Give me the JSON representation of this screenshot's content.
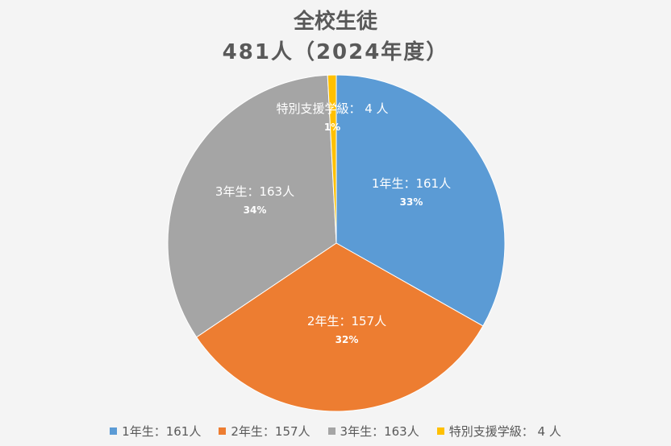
{
  "chart_data": {
    "type": "pie",
    "title": "全校生徒",
    "subtitle": "481人（2024年度）",
    "slices": [
      {
        "label": "1年生：161人",
        "value": 161,
        "percent": "33%",
        "color": "#5b9bd5"
      },
      {
        "label": "2年生：157人",
        "value": 157,
        "percent": "32%",
        "color": "#ed7d31"
      },
      {
        "label": "3年生：163人",
        "value": 163,
        "percent": "34%",
        "color": "#a5a5a5"
      },
      {
        "label": "特別支援学級： 4 人",
        "value": 4,
        "percent": "1%",
        "color": "#ffc000"
      }
    ],
    "legend_position": "bottom"
  }
}
